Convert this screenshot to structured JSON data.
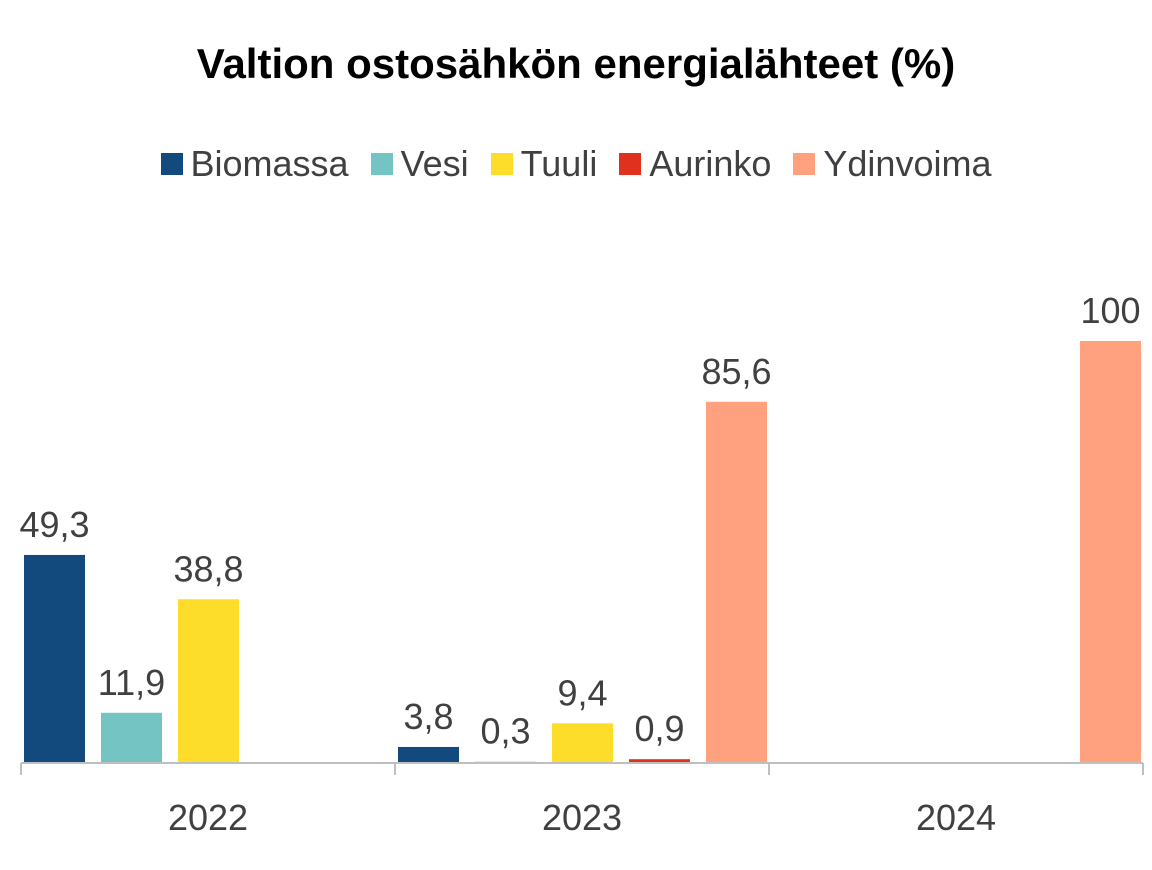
{
  "chart_data": {
    "type": "bar",
    "title": "Valtion ostosähkön energialähteet (%)",
    "categories": [
      "2022",
      "2023",
      "2024"
    ],
    "series": [
      {
        "name": "Biomassa",
        "color": "#124A7E",
        "values": [
          49.3,
          3.8,
          null
        ],
        "labels": [
          "49,3",
          "3,8",
          ""
        ]
      },
      {
        "name": "Vesi",
        "color": "#73C4C3",
        "values": [
          11.9,
          0.3,
          null
        ],
        "labels": [
          "11,9",
          "0,3",
          ""
        ]
      },
      {
        "name": "Tuuli",
        "color": "#FDDD2A",
        "values": [
          38.8,
          9.4,
          null
        ],
        "labels": [
          "38,8",
          "9,4",
          ""
        ]
      },
      {
        "name": "Aurinko",
        "color": "#E0301E",
        "values": [
          null,
          0.9,
          null
        ],
        "labels": [
          "",
          "0,9",
          ""
        ]
      },
      {
        "name": "Ydinvoima",
        "color": "#FFA07F",
        "values": [
          null,
          85.6,
          100
        ],
        "labels": [
          "",
          "85,6",
          "100"
        ]
      }
    ],
    "ylim": [
      0,
      100
    ],
    "grid": false,
    "legend_position": "top"
  }
}
